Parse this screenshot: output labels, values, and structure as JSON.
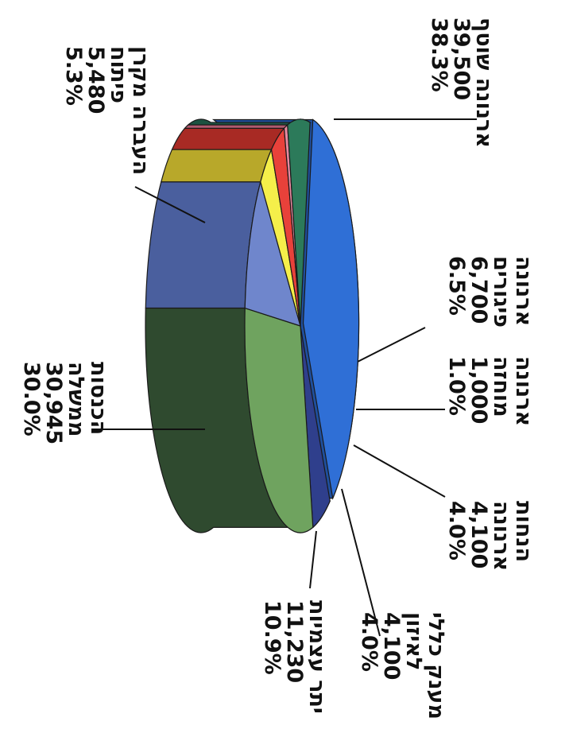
{
  "chart_data": {
    "type": "pie",
    "title": "",
    "orientation": "rotated 90 degrees clockwise (3D pie)",
    "slices": [
      {
        "label": [
          "ארנונה שוטף"
        ],
        "value": "39,500",
        "percent": "38.3%",
        "pct": 38.3,
        "color": "#2f6fd6",
        "side": "#1f4f9e"
      },
      {
        "label": [
          "העברה מקרן",
          "פיתוח"
        ],
        "value": "5,480",
        "percent": "5.3%",
        "pct": 5.3,
        "color": "#2f3f8c",
        "side": "#1d2a63"
      },
      {
        "label": [
          "הכנסות",
          "ממשלה"
        ],
        "value": "30,945",
        "percent": "30.0%",
        "pct": 30.0,
        "color": "#6fa35f",
        "side": "#2f4a2f"
      },
      {
        "label": [
          "יתר עצמיות"
        ],
        "value": "11,230",
        "percent": "10.9%",
        "pct": 10.9,
        "color": "#6f86cc",
        "side": "#4a5f9e"
      },
      {
        "label": [
          "מענק כללי",
          "לאיזון"
        ],
        "value": "4,100",
        "percent": "4.0%",
        "pct": 4.0,
        "color": "#f5ef4a",
        "side": "#b8a82a"
      },
      {
        "label": [
          "הנחות",
          "ארנונה"
        ],
        "value": "4,100",
        "percent": "4.0%",
        "pct": 4.0,
        "color": "#e8413a",
        "side": "#a82a24"
      },
      {
        "label": [
          "ארנונה",
          "מוחזה"
        ],
        "value": "1,000",
        "percent": "1.0%",
        "pct": 1.0,
        "color": "#e88aa0",
        "side": "#b05a6e"
      },
      {
        "label": [
          "ארנונה",
          "פיגורים"
        ],
        "value": "6,700",
        "percent": "6.5%",
        "pct": 6.5,
        "color": "#2c7a5a",
        "side": "#1c5240"
      }
    ]
  }
}
